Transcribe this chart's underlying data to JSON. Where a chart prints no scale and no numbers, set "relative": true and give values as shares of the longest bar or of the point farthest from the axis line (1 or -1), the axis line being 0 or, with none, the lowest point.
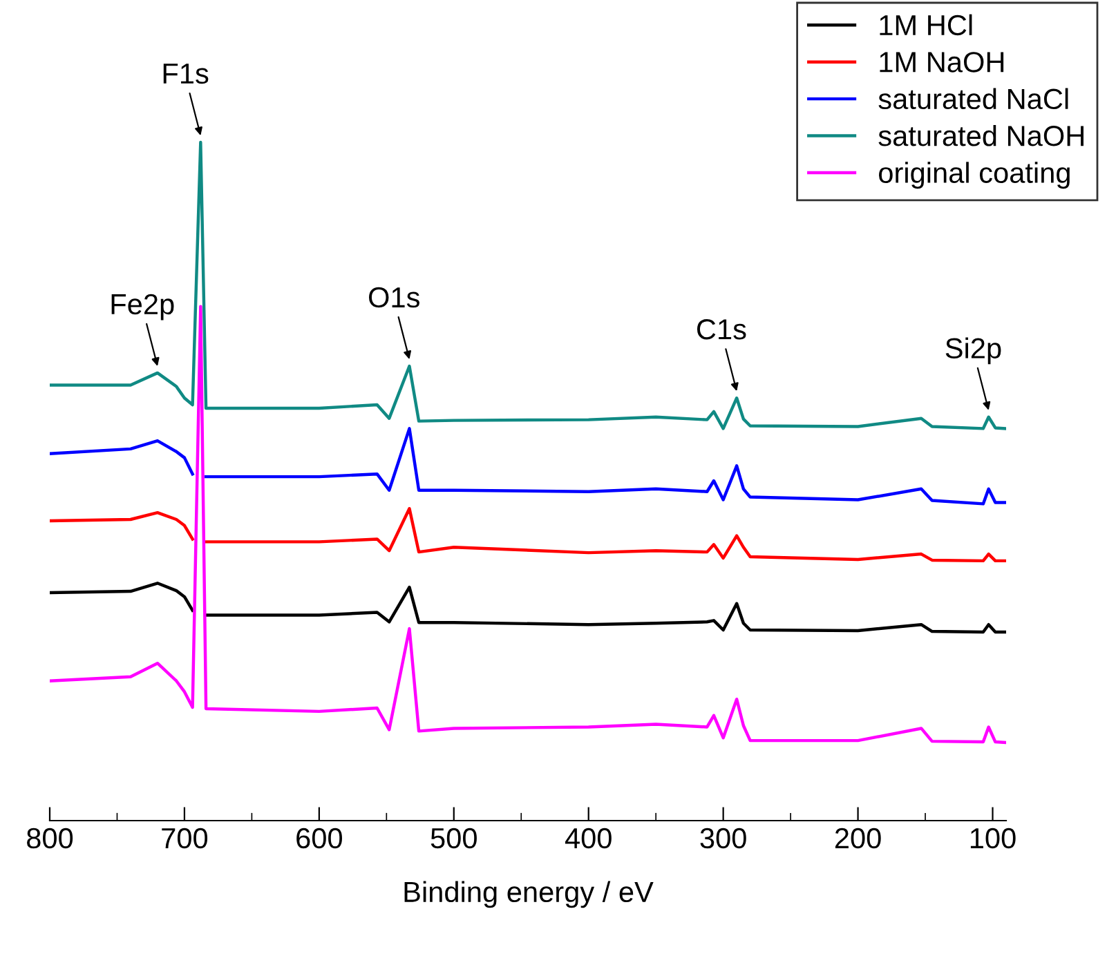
{
  "chart_data": {
    "type": "line",
    "relative": true,
    "xlabel": "Binding energy / eV",
    "x": [
      800,
      740,
      720,
      706,
      700,
      694,
      688,
      684,
      600,
      557,
      548,
      533,
      526,
      500,
      400,
      350,
      312,
      307,
      300,
      290,
      285,
      280,
      200,
      153,
      145,
      107,
      103,
      98,
      90
    ],
    "xlim": [
      800,
      90
    ],
    "xticks": [
      800,
      {
        "value": 750,
        "label": null
      },
      700,
      {
        "value": 650,
        "label": null
      },
      600,
      {
        "value": 550,
        "label": null
      },
      500,
      {
        "value": 450,
        "label": null
      },
      400,
      {
        "value": 350,
        "label": null
      },
      300,
      {
        "value": 250,
        "label": null
      },
      200,
      {
        "value": 150,
        "label": null
      },
      100
    ],
    "series": [
      {
        "name": "1M HCl",
        "color": "#000000",
        "values": [
          0.336,
          0.338,
          0.35,
          0.339,
          0.33,
          0.31,
          null,
          0.303,
          0.303,
          0.307,
          0.293,
          0.344,
          0.292,
          0.292,
          0.289,
          0.291,
          0.293,
          0.295,
          0.281,
          0.32,
          0.291,
          0.281,
          0.28,
          0.289,
          0.279,
          0.278,
          0.289,
          0.278,
          0.278
        ]
      },
      {
        "name": "1M NaOH",
        "color": "#ff0000",
        "values": [
          0.442,
          0.444,
          0.454,
          0.444,
          0.435,
          0.415,
          null,
          0.411,
          0.411,
          0.415,
          0.398,
          0.46,
          0.396,
          0.403,
          0.395,
          0.398,
          0.396,
          0.407,
          0.387,
          0.42,
          0.403,
          0.389,
          0.385,
          0.393,
          0.384,
          0.383,
          0.393,
          0.383,
          0.383
        ]
      },
      {
        "name": "saturated NaCl",
        "color": "#0000ff",
        "values": [
          0.541,
          0.548,
          0.56,
          0.544,
          0.535,
          0.511,
          null,
          0.507,
          0.507,
          0.511,
          0.487,
          0.578,
          0.487,
          0.487,
          0.485,
          0.489,
          0.485,
          0.501,
          0.473,
          0.523,
          0.489,
          0.477,
          0.473,
          0.489,
          0.472,
          0.467,
          0.489,
          0.469,
          0.469
        ]
      },
      {
        "name": "saturated NaOH",
        "color": "#108a84",
        "values": [
          0.642,
          0.642,
          0.66,
          0.64,
          0.623,
          0.613,
          1.0,
          0.608,
          0.608,
          0.613,
          0.593,
          0.67,
          0.589,
          0.59,
          0.591,
          0.595,
          0.591,
          0.603,
          0.578,
          0.623,
          0.592,
          0.582,
          0.581,
          0.593,
          0.581,
          0.578,
          0.595,
          0.579,
          0.578
        ]
      },
      {
        "name": "original coating",
        "color": "#ff00ff",
        "values": [
          0.206,
          0.212,
          0.232,
          0.206,
          0.19,
          0.167,
          0.758,
          0.165,
          0.161,
          0.166,
          0.134,
          0.283,
          0.132,
          0.136,
          0.138,
          0.142,
          0.138,
          0.155,
          0.122,
          0.179,
          0.14,
          0.118,
          0.118,
          0.136,
          0.117,
          0.116,
          0.138,
          0.116,
          0.115
        ]
      }
    ],
    "annotations": [
      {
        "text": "F1s",
        "x": 688,
        "y": 1.0
      },
      {
        "text": "Fe2p",
        "x": 720,
        "y": 0.66
      },
      {
        "text": "O1s",
        "x": 533,
        "y": 0.67
      },
      {
        "text": "C1s",
        "x": 290,
        "y": 0.623
      },
      {
        "text": "Si2p",
        "x": 103,
        "y": 0.595
      }
    ],
    "legend": "top right",
    "grid": false,
    "marker": "none",
    "line_style": "solid"
  }
}
